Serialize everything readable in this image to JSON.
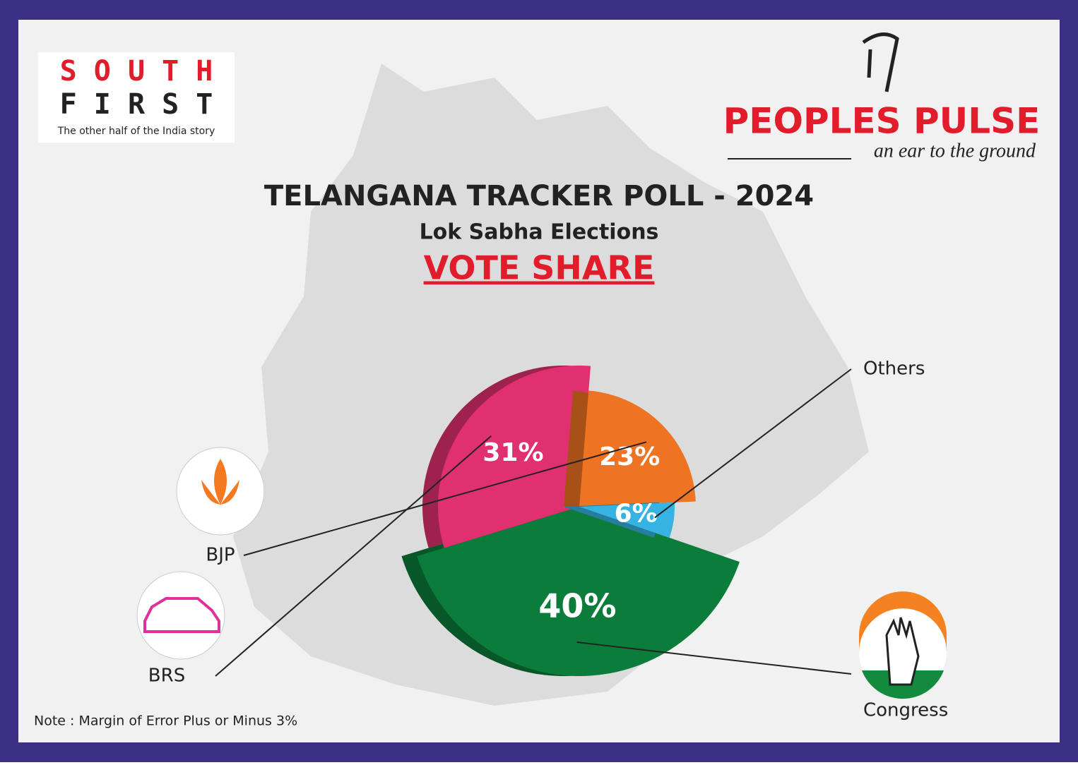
{
  "branding": {
    "left_logo": {
      "line1": "S O U T H",
      "line2": "F I R S T",
      "tagline": "The other half of the India story"
    },
    "right_logo": {
      "name": "PEOPLES PULSE",
      "tagline": "an ear to the ground"
    }
  },
  "chart_data": {
    "type": "pie",
    "title": "TELANGANA TRACKER POLL - 2024",
    "subtitle": "Lok Sabha Elections",
    "heading": "VOTE SHARE",
    "categories": [
      "Congress",
      "BRS",
      "BJP",
      "Others"
    ],
    "values": [
      40,
      31,
      23,
      6
    ],
    "value_labels": [
      "40%",
      "31%",
      "23%",
      "6%"
    ],
    "colors": [
      "#0b7c3a",
      "#e0306f",
      "#ee7322",
      "#36b3e2"
    ]
  },
  "note": "Note : Margin of Error Plus or Minus 3%"
}
